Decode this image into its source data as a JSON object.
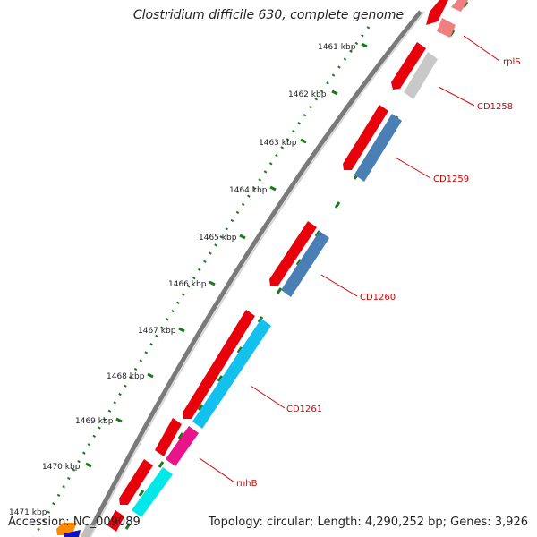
{
  "title": "Clostridium difficile 630, complete genome",
  "footer": {
    "accession": "Accession: NC_009089",
    "summary": "Topology: circular; Length: 4,290,252 bp; Genes: 3,926"
  },
  "ticks": [
    "1461 kbp",
    "1462 kbp",
    "1463 kbp",
    "1464 kbp",
    "1465 kbp",
    "1466 kbp",
    "1467 kbp",
    "1468 kbp",
    "1469 kbp",
    "1470 kbp",
    "1471 kbp"
  ],
  "genes": [
    "rplS",
    "CD1258",
    "CD1259",
    "CD1260",
    "CD1261",
    "rnhB"
  ],
  "colors": {
    "backbone": "#7a7a7a",
    "cds": "#e8000b",
    "tick_dots": "#1a7a1a",
    "label": "#d40000",
    "rplS": "#f08080",
    "CD1258": "#c8c8c8",
    "CD1259": "#4a7fb5",
    "CD1260": "#4a7fb5",
    "CD1261": "#13c0ee",
    "rnhB": "#e8158a"
  }
}
